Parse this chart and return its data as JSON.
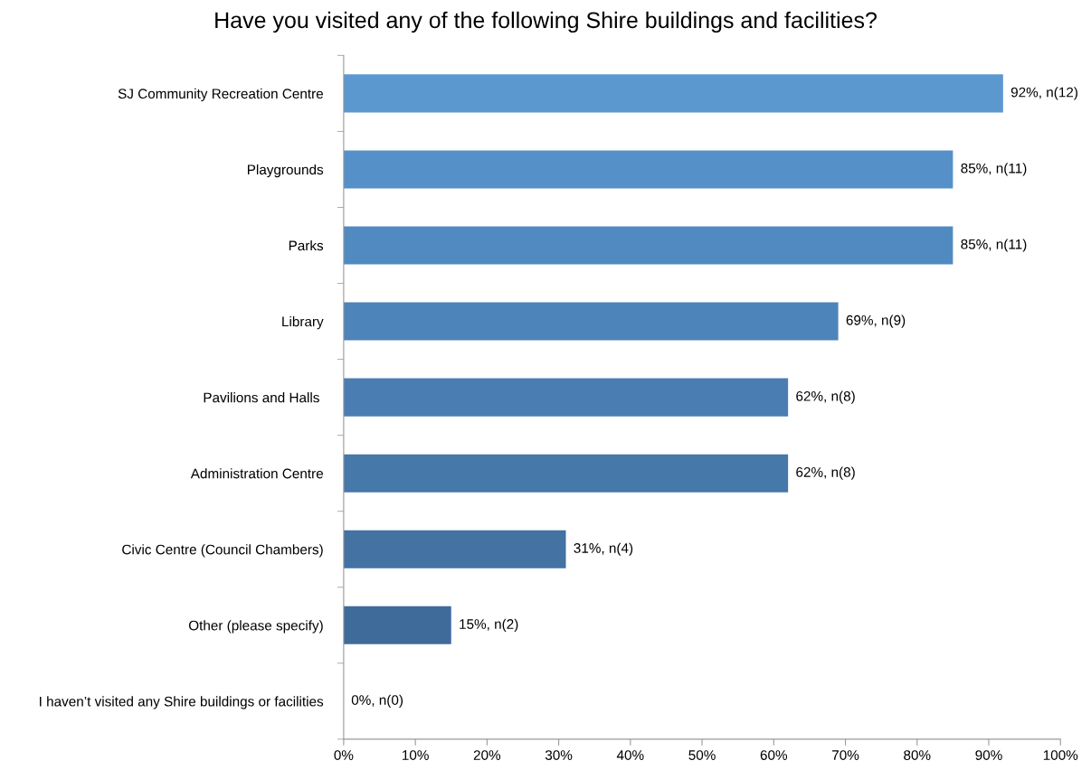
{
  "chart_data": {
    "type": "bar",
    "orientation": "horizontal",
    "title": "Have you visited any of the following Shire buildings and facilities?",
    "categories": [
      "SJ Community Recreation Centre",
      "Playgrounds",
      "Parks",
      "Library",
      "Pavilions and Halls ",
      "Administration Centre",
      "Civic Centre (Council Chambers)",
      "Other (please specify)",
      "I haven’t visited any Shire buildings or facilities"
    ],
    "values": [
      92,
      85,
      85,
      69,
      62,
      62,
      31,
      15,
      0
    ],
    "colors": [
      "#5b98cf",
      "#5591c8",
      "#518ac0",
      "#4d84b9",
      "#4a7eb2",
      "#4678aa",
      "#4372a3",
      "#3f6b9b",
      "#3c6594"
    ],
    "value_labels": [
      "92%, n(12)",
      "85%, n(11)",
      "85%, n(11)",
      "69%, n(9)",
      "62%, n(8)",
      "62%, n(8)",
      "31%, n(4)",
      "15%, n(2)",
      "0%, n(0)"
    ],
    "xlim": [
      0,
      100
    ],
    "xticks": [
      {
        "value": 0,
        "label": "0%"
      },
      {
        "value": 10,
        "label": "10%"
      },
      {
        "value": 20,
        "label": "20%"
      },
      {
        "value": 30,
        "label": "30%"
      },
      {
        "value": 40,
        "label": "40%"
      },
      {
        "value": 50,
        "label": "50%"
      },
      {
        "value": 60,
        "label": "60%"
      },
      {
        "value": 70,
        "label": "70%"
      },
      {
        "value": 80,
        "label": "80%"
      },
      {
        "value": 90,
        "label": "90%"
      },
      {
        "value": 100,
        "label": "100%"
      }
    ],
    "grid": false,
    "legend": false
  }
}
